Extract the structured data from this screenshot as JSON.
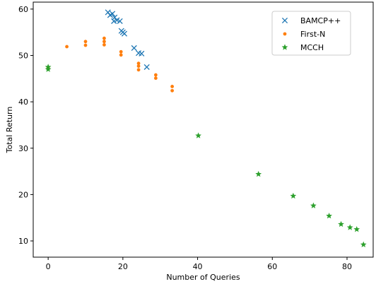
{
  "chart_data": {
    "type": "scatter",
    "title": "",
    "xlabel": "Number of Queries",
    "ylabel": "Total Return",
    "xlim": [
      -4,
      87
    ],
    "ylim": [
      6.5,
      61.5
    ],
    "xticks": [
      0,
      20,
      40,
      60,
      80
    ],
    "yticks": [
      10,
      20,
      30,
      40,
      50,
      60
    ],
    "grid": false,
    "legend_position": "upper right",
    "series": [
      {
        "name": "BAMCP++",
        "marker": "x",
        "color": "#1f77b4",
        "points": [
          {
            "x": 16.0,
            "y": 59.3
          },
          {
            "x": 16.6,
            "y": 58.7
          },
          {
            "x": 17.2,
            "y": 59.0
          },
          {
            "x": 17.8,
            "y": 58.2
          },
          {
            "x": 17.6,
            "y": 57.4
          },
          {
            "x": 18.4,
            "y": 57.6
          },
          {
            "x": 19.2,
            "y": 57.4
          },
          {
            "x": 19.6,
            "y": 55.3
          },
          {
            "x": 20.0,
            "y": 55.0
          },
          {
            "x": 20.4,
            "y": 54.7
          },
          {
            "x": 23.0,
            "y": 51.6
          },
          {
            "x": 24.2,
            "y": 50.5
          },
          {
            "x": 25.0,
            "y": 50.4
          },
          {
            "x": 26.4,
            "y": 47.5
          }
        ]
      },
      {
        "name": "First-N",
        "marker": "o",
        "color": "#ff7f0e",
        "points": [
          {
            "x": 0.0,
            "y": 47.3
          },
          {
            "x": 5.0,
            "y": 51.9
          },
          {
            "x": 10.0,
            "y": 53.0
          },
          {
            "x": 10.0,
            "y": 52.2
          },
          {
            "x": 15.0,
            "y": 53.7
          },
          {
            "x": 15.0,
            "y": 53.0
          },
          {
            "x": 15.0,
            "y": 52.3
          },
          {
            "x": 19.5,
            "y": 50.8
          },
          {
            "x": 19.5,
            "y": 50.1
          },
          {
            "x": 24.2,
            "y": 48.3
          },
          {
            "x": 24.2,
            "y": 47.7
          },
          {
            "x": 24.2,
            "y": 46.9
          },
          {
            "x": 28.8,
            "y": 45.8
          },
          {
            "x": 28.8,
            "y": 45.1
          },
          {
            "x": 33.2,
            "y": 43.3
          },
          {
            "x": 33.2,
            "y": 42.4
          }
        ]
      },
      {
        "name": "MCCH",
        "marker": "*",
        "color": "#2ca02c",
        "points": [
          {
            "x": 0.0,
            "y": 47.5
          },
          {
            "x": 0.0,
            "y": 47.0
          },
          {
            "x": 40.2,
            "y": 32.7
          },
          {
            "x": 56.3,
            "y": 24.4
          },
          {
            "x": 65.6,
            "y": 19.7
          },
          {
            "x": 71.0,
            "y": 17.6
          },
          {
            "x": 75.2,
            "y": 15.4
          },
          {
            "x": 78.4,
            "y": 13.6
          },
          {
            "x": 80.8,
            "y": 12.9
          },
          {
            "x": 82.6,
            "y": 12.5
          },
          {
            "x": 84.4,
            "y": 9.2
          }
        ]
      }
    ]
  }
}
